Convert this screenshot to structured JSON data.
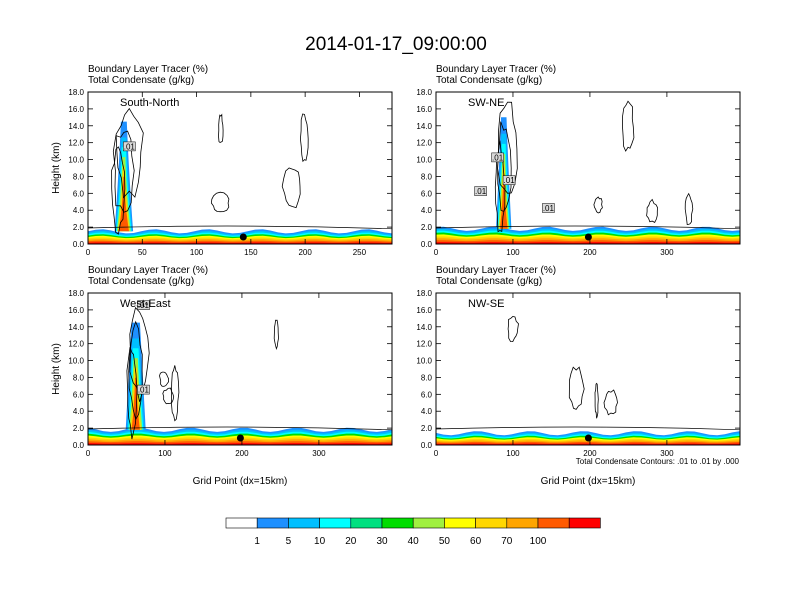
{
  "figure": {
    "title": "2014-01-17_09:00:00",
    "footnote": "Total Condensate Contours: .01 to .01 by .000"
  },
  "colorbar": {
    "colors": [
      "#ffffff",
      "#1e90ff",
      "#00bfff",
      "#00ffff",
      "#00e080",
      "#00dd00",
      "#a0f040",
      "#ffff00",
      "#ffd700",
      "#ffa500",
      "#ff5a00",
      "#ff0000"
    ],
    "labels": [
      "1",
      "5",
      "10",
      "20",
      "30",
      "40",
      "50",
      "60",
      "70",
      "100"
    ]
  },
  "chart_data": [
    {
      "type": "contour",
      "region": "South-North",
      "title_lines": [
        "Boundary Layer Tracer   (%)",
        "Total Condensate   (g/kg)"
      ],
      "ylabel": "Height (km)",
      "xlabel": "",
      "xlim": [
        0,
        280
      ],
      "ylim": [
        0,
        18
      ],
      "xticks": [
        0,
        50,
        100,
        150,
        200,
        250
      ],
      "yticks": [
        "0.0",
        "2.0",
        "4.0",
        "6.0",
        "8.0",
        "10.0",
        "12.0",
        "14.0",
        "16.0",
        "18.0"
      ],
      "column": {
        "x": 33,
        "top": 14.5,
        "width": 9
      },
      "cap_base": 1.5,
      "surface_marker_x": 143,
      "contour_labels": [
        {
          "x": 38,
          "y": 11.5,
          "text": ".01"
        }
      ]
    },
    {
      "type": "contour",
      "region": "SW-NE",
      "title_lines": [
        "Boundary Layer Tracer   (%)",
        "Total Condensate   (g/kg)"
      ],
      "ylabel": "",
      "xlabel": "",
      "xlim": [
        0,
        395
      ],
      "ylim": [
        0,
        18
      ],
      "xticks": [
        0,
        100,
        200,
        300
      ],
      "yticks": [
        "0.0",
        "2.0",
        "4.0",
        "6.0",
        "8.0",
        "10.0",
        "12.0",
        "14.0",
        "16.0",
        "18.0"
      ],
      "column": {
        "x": 88,
        "top": 15.0,
        "width": 12
      },
      "cap_base": 1.8,
      "surface_marker_x": 198,
      "contour_labels": [
        {
          "x": 80,
          "y": 10.2,
          "text": ".01"
        },
        {
          "x": 58,
          "y": 6.2,
          "text": ".01"
        },
        {
          "x": 95,
          "y": 7.5,
          "text": ".01"
        },
        {
          "x": 146,
          "y": 4.2,
          "text": ".01"
        }
      ]
    },
    {
      "type": "contour",
      "region": "West-East",
      "title_lines": [
        "Boundary Layer Tracer   (%)",
        "Total Condensate   (g/kg)"
      ],
      "ylabel": "Height (km)",
      "xlabel": "Grid Point  (dx=15km)",
      "xlim": [
        0,
        395
      ],
      "ylim": [
        0,
        18
      ],
      "xticks": [
        0,
        100,
        200,
        300
      ],
      "yticks": [
        "0.0",
        "2.0",
        "4.0",
        "6.0",
        "8.0",
        "10.0",
        "12.0",
        "14.0",
        "16.0",
        "18.0"
      ],
      "column": {
        "x": 62,
        "top": 14.5,
        "width": 18
      },
      "cap_base": 1.8,
      "surface_marker_x": 198,
      "contour_labels": [
        {
          "x": 72,
          "y": 16.5,
          "text": ".01"
        },
        {
          "x": 72,
          "y": 6.5,
          "text": ".01"
        }
      ]
    },
    {
      "type": "contour",
      "region": "NW-SE",
      "title_lines": [
        "Boundary Layer Tracer   (%)",
        "Total Condensate   (g/kg)"
      ],
      "ylabel": "",
      "xlabel": "Grid Point  (dx=15km)",
      "xlim": [
        0,
        395
      ],
      "ylim": [
        0,
        18
      ],
      "xticks": [
        0,
        100,
        200,
        300
      ],
      "yticks": [
        "0.0",
        "2.0",
        "4.0",
        "6.0",
        "8.0",
        "10.0",
        "12.0",
        "14.0",
        "16.0",
        "18.0"
      ],
      "column": null,
      "cap_base": 1.4,
      "surface_marker_x": 198,
      "contour_labels": []
    }
  ]
}
